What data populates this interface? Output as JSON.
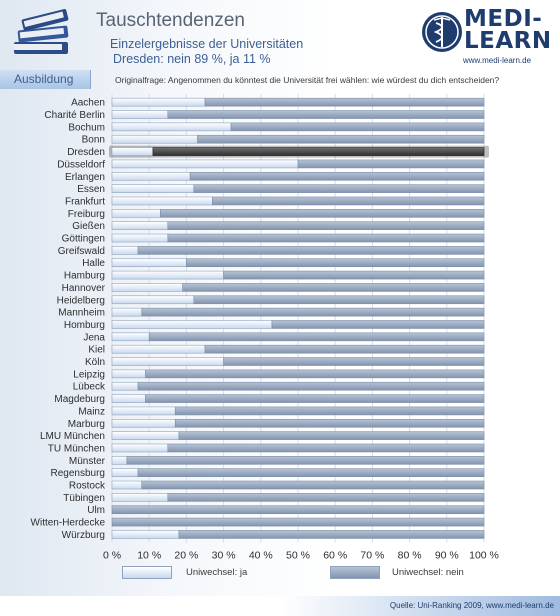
{
  "header": {
    "title": "Tauschtendenzen",
    "subtitle": "Einzelergebnisse der Universitäten",
    "subtitle_city": "Dresden:",
    "subtitle_values": "nein 89 %, ja 11 %",
    "section_tab": "Ausbildung",
    "question": "Originalfrage: Angenommen du könntest die Universität frei wählen: wie würdest du dich entscheiden?"
  },
  "logo": {
    "line1": "MEDI-",
    "line2": "LEARN",
    "url": "www.medi-learn.de"
  },
  "footer": {
    "source": "Quelle: Uni-Ranking 2009, www.medi-learn.de"
  },
  "colors": {
    "ja": "#dbe6f4",
    "nein": "#95a5bd",
    "highlight": "#5a5a5a",
    "brand": "#1f3c6e"
  },
  "chart_data": {
    "type": "bar",
    "orientation": "horizontal-stacked-100",
    "categories": [
      "Aachen",
      "Charité Berlin",
      "Bochum",
      "Bonn",
      "Dresden",
      "Düsseldorf",
      "Erlangen",
      "Essen",
      "Frankfurt",
      "Freiburg",
      "Gießen",
      "Göttingen",
      "Greifswald",
      "Halle",
      "Hamburg",
      "Hannover",
      "Heidelberg",
      "Mannheim",
      "Homburg",
      "Jena",
      "Kiel",
      "Köln",
      "Leipzig",
      "Lübeck",
      "Magdeburg",
      "Mainz",
      "Marburg",
      "LMU München",
      "TU München",
      "Münster",
      "Regensburg",
      "Rostock",
      "Tübingen",
      "Ulm",
      "Witten-Herdecke",
      "Würzburg"
    ],
    "series": [
      {
        "name": "Uniwechsel: ja",
        "values": [
          25,
          15,
          32,
          23,
          11,
          50,
          21,
          22,
          27,
          13,
          15,
          15,
          7,
          20,
          30,
          19,
          22,
          8,
          43,
          10,
          25,
          30,
          9,
          7,
          9,
          17,
          17,
          18,
          15,
          4,
          7,
          8,
          15,
          0,
          0,
          18
        ]
      },
      {
        "name": "Uniwechsel: nein",
        "values": [
          75,
          85,
          68,
          77,
          89,
          50,
          79,
          78,
          73,
          87,
          85,
          85,
          93,
          80,
          70,
          81,
          78,
          92,
          57,
          90,
          75,
          70,
          91,
          93,
          91,
          83,
          83,
          82,
          85,
          96,
          93,
          92,
          85,
          100,
          100,
          82
        ]
      }
    ],
    "highlighted_category": "Dresden",
    "x_ticks": [
      "0 %",
      "10 %",
      "20 %",
      "30 %",
      "40 %",
      "50 %",
      "60 %",
      "70 %",
      "80 %",
      "90 %",
      "100 %"
    ],
    "xlim": [
      0,
      100
    ],
    "legend_position": "bottom",
    "legend": [
      "Uniwechsel: ja",
      "Uniwechsel: nein"
    ]
  }
}
